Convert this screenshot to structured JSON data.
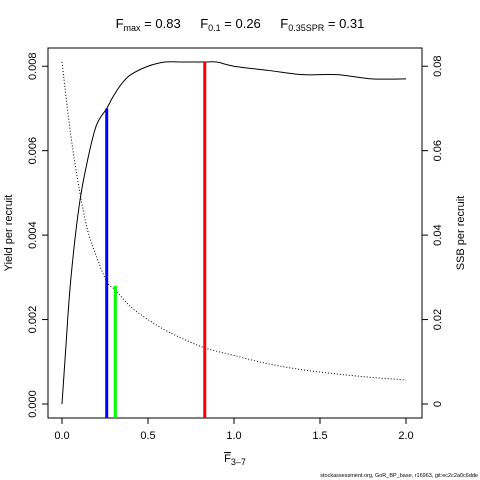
{
  "chart_data": {
    "type": "line",
    "title": {
      "parts": [
        {
          "base": "F",
          "sub": "max",
          "eq": " = 0.83"
        },
        {
          "base": "F",
          "sub": "0.1",
          "eq": " = 0.26"
        },
        {
          "base": "F",
          "sub": "0.35SPR",
          "eq": " = 0.31"
        }
      ]
    },
    "xlabel": {
      "base": "F",
      "sub": "3–7"
    },
    "ylabel_left": "Yield per recruit",
    "ylabel_right": "SSB per recruit",
    "xlim": [
      0,
      2.0
    ],
    "ylim_left": [
      0,
      0.0081
    ],
    "ylim_right": [
      0,
      0.081
    ],
    "x_ticks": [
      {
        "value": 0.0,
        "label": "0.0"
      },
      {
        "value": 0.5,
        "label": "0.5"
      },
      {
        "value": 1.0,
        "label": "1.0"
      },
      {
        "value": 1.5,
        "label": "1.5"
      },
      {
        "value": 2.0,
        "label": "2.0"
      }
    ],
    "y_left_ticks": [
      {
        "value": 0.0,
        "label": "0.000"
      },
      {
        "value": 0.002,
        "label": "0.002"
      },
      {
        "value": 0.004,
        "label": "0.004"
      },
      {
        "value": 0.006,
        "label": "0.006"
      },
      {
        "value": 0.008,
        "label": "0.008"
      }
    ],
    "y_right_ticks": [
      {
        "value": 0.0,
        "label": "0"
      },
      {
        "value": 0.02,
        "label": "0.02"
      },
      {
        "value": 0.04,
        "label": "0.04"
      },
      {
        "value": 0.06,
        "label": "0.06"
      },
      {
        "value": 0.08,
        "label": "0.08"
      }
    ],
    "series": [
      {
        "axis": "left",
        "style": "solid",
        "color": "#000000",
        "x": [
          0.0,
          0.02,
          0.05,
          0.1,
          0.15,
          0.2,
          0.26,
          0.3,
          0.35,
          0.4,
          0.5,
          0.6,
          0.7,
          0.83,
          0.9,
          1.0,
          1.2,
          1.4,
          1.6,
          1.8,
          2.0
        ],
        "y": [
          0.0,
          0.0012,
          0.0029,
          0.0047,
          0.0058,
          0.0066,
          0.007,
          0.0073,
          0.0076,
          0.0078,
          0.008,
          0.0081,
          0.0081,
          0.0081,
          0.0081,
          0.008,
          0.0079,
          0.0078,
          0.0078,
          0.0077,
          0.0077
        ]
      },
      {
        "axis": "right",
        "style": "dotted",
        "color": "#000000",
        "x": [
          0.0,
          0.05,
          0.1,
          0.15,
          0.2,
          0.26,
          0.31,
          0.4,
          0.5,
          0.6,
          0.7,
          0.83,
          1.0,
          1.2,
          1.4,
          1.6,
          1.8,
          2.0
        ],
        "y": [
          0.081,
          0.064,
          0.051,
          0.041,
          0.035,
          0.029,
          0.027,
          0.023,
          0.02,
          0.0175,
          0.0155,
          0.0133,
          0.0115,
          0.0095,
          0.0081,
          0.0071,
          0.0063,
          0.0057
        ]
      }
    ],
    "reference_lines": [
      {
        "label": "F0.1",
        "x": 0.26,
        "y": 0.007,
        "axis": "left",
        "color": "#0000ff"
      },
      {
        "label": "F0.35SPR",
        "x": 0.31,
        "y": 0.028,
        "axis": "right",
        "color": "#00ff00"
      },
      {
        "label": "Fmax",
        "x": 0.83,
        "y": 0.0081,
        "axis": "left",
        "color": "#ff0000"
      }
    ],
    "grid": false,
    "legend": "none"
  },
  "footer": "stockassessment.org, GoR_BP_base, r16963, git:ec2c2a0c6dde"
}
